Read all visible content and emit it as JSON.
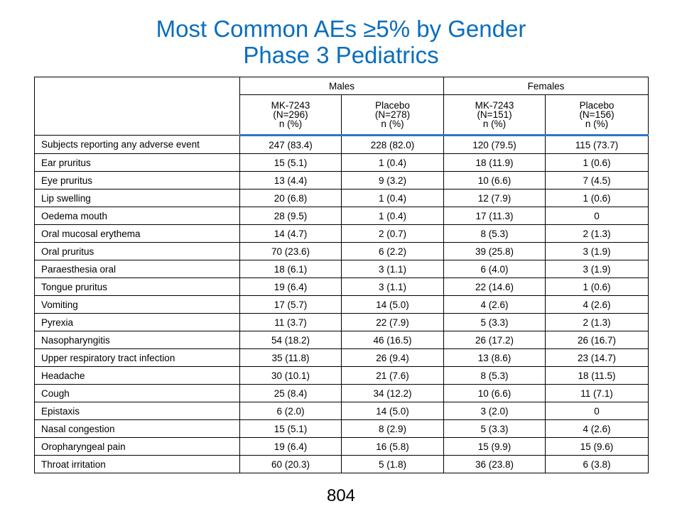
{
  "title": {
    "line1": "Most Common AEs ≥5% by Gender",
    "line2": "Phase 3 Pediatrics"
  },
  "table": {
    "groups": [
      "Males",
      "Females"
    ],
    "arms": [
      {
        "name": "MK-7243",
        "n": "(N=296)",
        "unit": "n (%)"
      },
      {
        "name": "Placebo",
        "n": "(N=278)",
        "unit": "n (%)"
      },
      {
        "name": "MK-7243",
        "n": "(N=151)",
        "unit": "n (%)"
      },
      {
        "name": "Placebo",
        "n": "(N=156)",
        "unit": "n (%)"
      }
    ],
    "rows": [
      {
        "label": "Subjects reporting any adverse event",
        "values": [
          "247 (83.4)",
          "228 (82.0)",
          "120 (79.5)",
          "115 (73.7)"
        ]
      },
      {
        "label": "Ear pruritus",
        "values": [
          "15 (5.1)",
          "1 (0.4)",
          "18 (11.9)",
          "1 (0.6)"
        ]
      },
      {
        "label": "Eye pruritus",
        "values": [
          "13 (4.4)",
          "9 (3.2)",
          "10 (6.6)",
          "7 (4.5)"
        ]
      },
      {
        "label": "Lip swelling",
        "values": [
          "20 (6.8)",
          "1 (0.4)",
          "12 (7.9)",
          "1 (0.6)"
        ]
      },
      {
        "label": "Oedema mouth",
        "values": [
          "28 (9.5)",
          "1 (0.4)",
          "17 (11.3)",
          "0"
        ]
      },
      {
        "label": "Oral mucosal erythema",
        "values": [
          "14 (4.7)",
          "2 (0.7)",
          "8 (5.3)",
          "2 (1.3)"
        ]
      },
      {
        "label": "Oral pruritus",
        "values": [
          "70 (23.6)",
          "6 (2.2)",
          "39 (25.8)",
          "3 (1.9)"
        ]
      },
      {
        "label": "Paraesthesia oral",
        "values": [
          "18 (6.1)",
          "3 (1.1)",
          "6 (4.0)",
          "3 (1.9)"
        ]
      },
      {
        "label": "Tongue pruritus",
        "values": [
          "19 (6.4)",
          "3 (1.1)",
          "22 (14.6)",
          "1 (0.6)"
        ]
      },
      {
        "label": "Vomiting",
        "values": [
          "17 (5.7)",
          "14 (5.0)",
          "4 (2.6)",
          "4 (2.6)"
        ]
      },
      {
        "label": "Pyrexia",
        "values": [
          "11 (3.7)",
          "22 (7.9)",
          "5 (3.3)",
          "2 (1.3)"
        ]
      },
      {
        "label": "Nasopharyngitis",
        "values": [
          "54 (18.2)",
          "46 (16.5)",
          "26 (17.2)",
          "26 (16.7)"
        ]
      },
      {
        "label": "Upper respiratory tract infection",
        "values": [
          "35 (11.8)",
          "26 (9.4)",
          "13 (8.6)",
          "23 (14.7)"
        ]
      },
      {
        "label": "Headache",
        "values": [
          "30 (10.1)",
          "21 (7.6)",
          "8 (5.3)",
          "18 (11.5)"
        ]
      },
      {
        "label": "Cough",
        "values": [
          "25 (8.4)",
          "34 (12.2)",
          "10 (6.6)",
          "11 (7.1)"
        ]
      },
      {
        "label": "Epistaxis",
        "values": [
          "6 (2.0)",
          "14 (5.0)",
          "3 (2.0)",
          "0"
        ]
      },
      {
        "label": "Nasal congestion",
        "values": [
          "15 (5.1)",
          "8 (2.9)",
          "5 (3.3)",
          "4 (2.6)"
        ]
      },
      {
        "label": "Oropharyngeal pain",
        "values": [
          "19 (6.4)",
          "16 (5.8)",
          "15 (9.9)",
          "15 (9.6)"
        ]
      },
      {
        "label": "Throat irritation",
        "values": [
          "60 (20.3)",
          "5 (1.8)",
          "36 (23.8)",
          "6 (3.8)"
        ]
      }
    ]
  },
  "footer": {
    "page_number": "804"
  },
  "colors": {
    "title": "#0a6ebd",
    "header_rule": "#2e74c8"
  }
}
